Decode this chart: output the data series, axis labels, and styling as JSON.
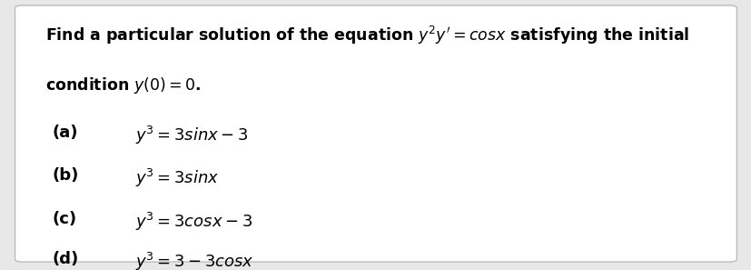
{
  "bg_color": "#e8e8e8",
  "box_color": "#ffffff",
  "text_color": "#000000",
  "title_line1": "Find a particular solution of the equation $y^2y' = \\mathit{cos}\\mathit{x}$ satisfying the initial",
  "title_line2": "condition $y(0) = 0$.",
  "options": [
    {
      "label": "(a)",
      "expr": "$y^3 = 3\\mathit{sin}\\mathit{x} - 3$"
    },
    {
      "label": "(b)",
      "expr": "$y^3 = 3\\mathit{sin}\\mathit{x}$"
    },
    {
      "label": "(c)",
      "expr": "$y^3 = 3\\mathit{cos}\\mathit{x} - 3$"
    },
    {
      "label": "(d)",
      "expr": "$y^3 = 3 - 3\\mathit{cos}\\mathit{x}$"
    }
  ],
  "title_fontsize": 12.5,
  "option_fontsize": 13,
  "label_fontsize": 13
}
